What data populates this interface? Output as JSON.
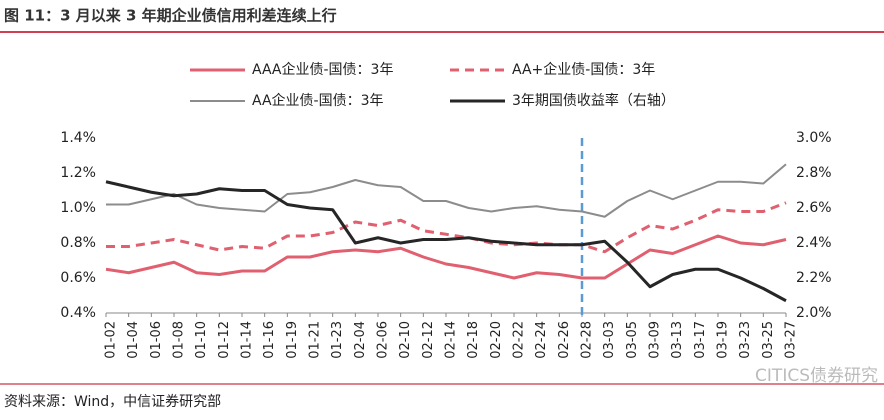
{
  "header": {
    "title": "图 11：3 月以来 3 年期企业债信用利差连续上行"
  },
  "chart_data": {
    "type": "line",
    "categories": [
      "01-02",
      "01-04",
      "01-06",
      "01-08",
      "01-10",
      "01-12",
      "01-14",
      "01-16",
      "01-19",
      "01-21",
      "01-23",
      "02-04",
      "02-06",
      "02-10",
      "02-12",
      "02-14",
      "02-18",
      "02-20",
      "02-22",
      "02-24",
      "02-26",
      "02-28",
      "03-03",
      "03-05",
      "03-09",
      "03-13",
      "03-17",
      "03-19",
      "03-23",
      "03-25",
      "03-27"
    ],
    "series": [
      {
        "name": "AAA企业债-国债：3年",
        "color": "#e06070",
        "dash": "solid",
        "width": 3,
        "axis": "y",
        "values": [
          0.65,
          0.63,
          0.66,
          0.69,
          0.63,
          0.62,
          0.64,
          0.64,
          0.72,
          0.72,
          0.75,
          0.76,
          0.75,
          0.77,
          0.72,
          0.68,
          0.66,
          0.63,
          0.6,
          0.63,
          0.62,
          0.6,
          0.6,
          0.68,
          0.76,
          0.74,
          0.79,
          0.84,
          0.8,
          0.79,
          0.82
        ]
      },
      {
        "name": "AA+企业债-国债：3年",
        "color": "#e06070",
        "dash": "dashed",
        "width": 3,
        "axis": "y",
        "values": [
          0.78,
          0.78,
          0.8,
          0.82,
          0.79,
          0.76,
          0.78,
          0.77,
          0.84,
          0.84,
          0.86,
          0.92,
          0.9,
          0.93,
          0.87,
          0.85,
          0.83,
          0.8,
          0.79,
          0.8,
          0.79,
          0.79,
          0.75,
          0.83,
          0.9,
          0.88,
          0.93,
          0.99,
          0.98,
          0.98,
          1.03
        ]
      },
      {
        "name": "AA企业债-国债：3年",
        "color": "#8c8c8c",
        "dash": "solid",
        "width": 2,
        "axis": "y",
        "values": [
          1.02,
          1.02,
          1.05,
          1.08,
          1.02,
          1.0,
          0.99,
          0.98,
          1.08,
          1.09,
          1.12,
          1.16,
          1.13,
          1.12,
          1.04,
          1.04,
          1.0,
          0.98,
          1.0,
          1.01,
          0.99,
          0.98,
          0.95,
          1.04,
          1.1,
          1.05,
          1.1,
          1.15,
          1.15,
          1.14,
          1.25
        ]
      },
      {
        "name": "3年期国债收益率（右轴）",
        "color": "#262626",
        "dash": "solid",
        "width": 3,
        "axis": "y2",
        "values": [
          2.75,
          2.72,
          2.69,
          2.67,
          2.68,
          2.71,
          2.7,
          2.7,
          2.62,
          2.6,
          2.59,
          2.4,
          2.43,
          2.4,
          2.42,
          2.42,
          2.43,
          2.41,
          2.4,
          2.39,
          2.39,
          2.39,
          2.41,
          2.29,
          2.15,
          2.22,
          2.25,
          2.25,
          2.2,
          2.14,
          2.07
        ]
      }
    ],
    "reference_line": {
      "x": "02-28",
      "color": "#5b9bd5"
    },
    "ylim": [
      0.4,
      1.4
    ],
    "yticks": [
      {
        "value": 0.4,
        "label": "0.4%"
      },
      {
        "value": 0.6,
        "label": "0.6%"
      },
      {
        "value": 0.8,
        "label": "0.8%"
      },
      {
        "value": 1.0,
        "label": "1.0%"
      },
      {
        "value": 1.2,
        "label": "1.2%"
      },
      {
        "value": 1.4,
        "label": "1.4%"
      }
    ],
    "y2lim": [
      2.0,
      3.0
    ],
    "y2ticks": [
      {
        "value": 2.0,
        "label": "2.0%"
      },
      {
        "value": 2.2,
        "label": "2.2%"
      },
      {
        "value": 2.4,
        "label": "2.4%"
      },
      {
        "value": 2.6,
        "label": "2.6%"
      },
      {
        "value": 2.8,
        "label": "2.8%"
      },
      {
        "value": 3.0,
        "label": "3.0%"
      }
    ]
  },
  "footer": {
    "source": "资料来源：Wind，中信证券研究部",
    "watermark": "CITICS债券研究"
  }
}
